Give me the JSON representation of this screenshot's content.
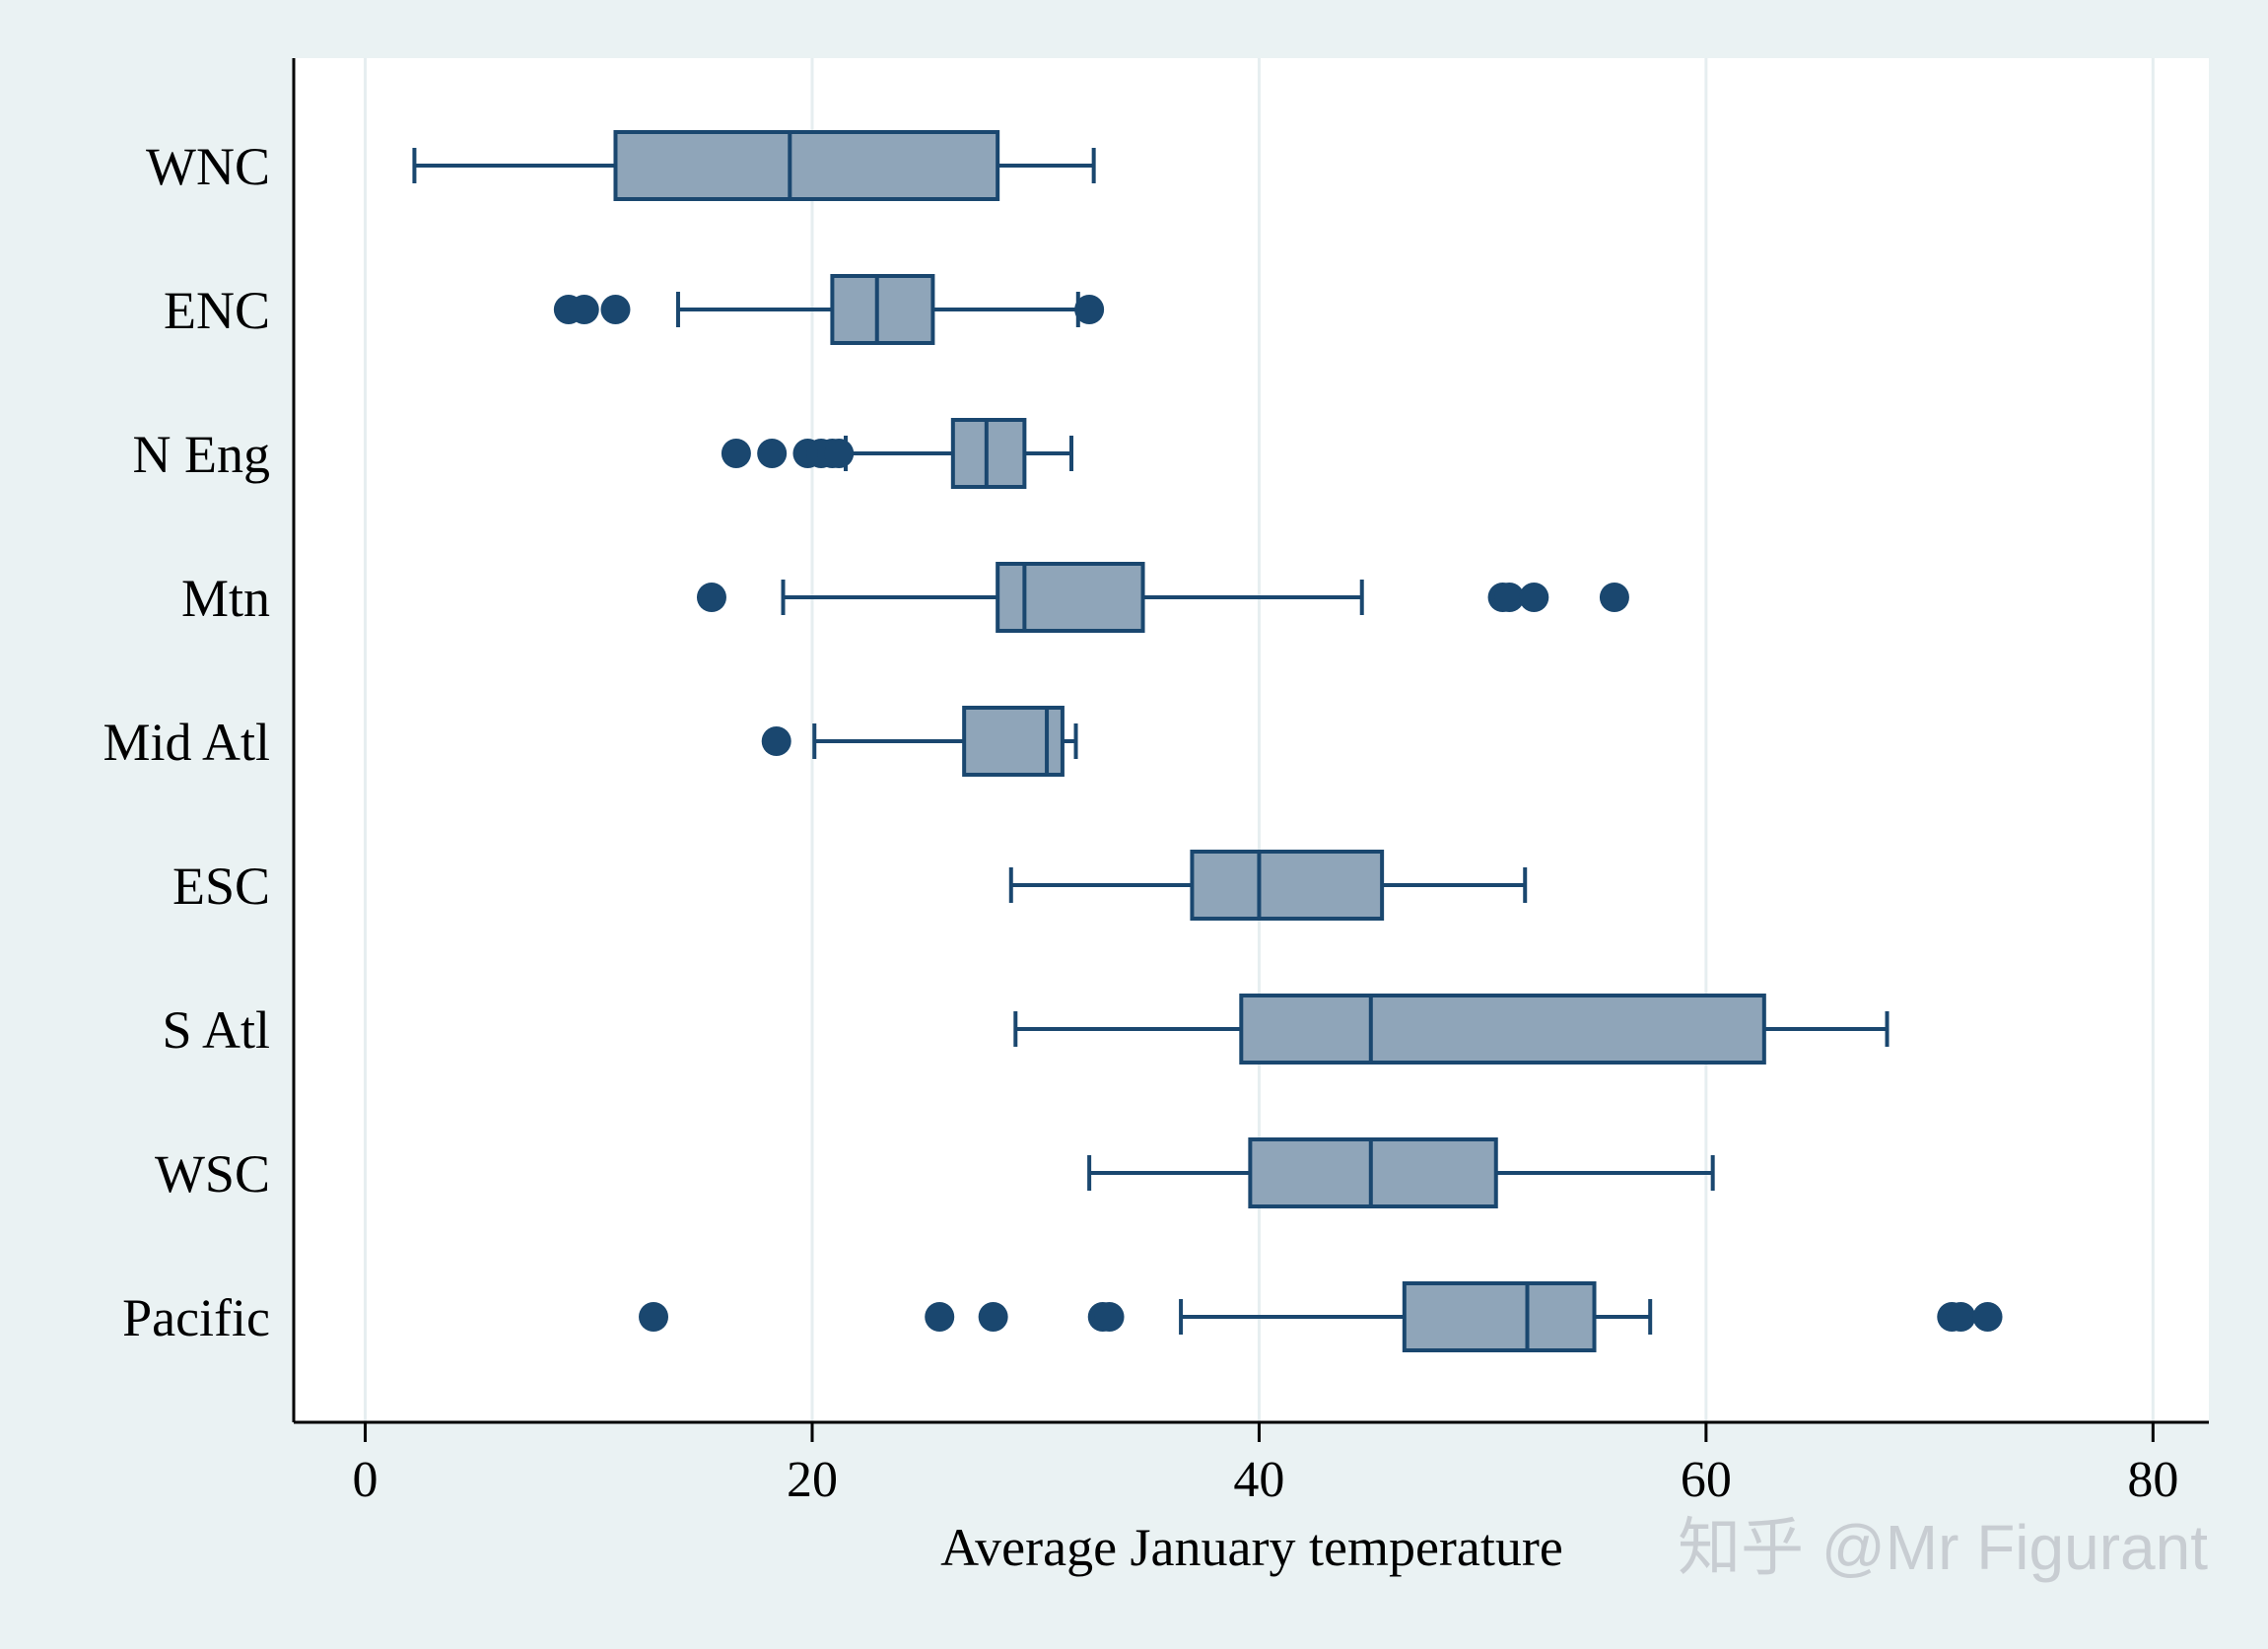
{
  "chart_data": {
    "type": "boxplot",
    "orientation": "horizontal",
    "title": "",
    "xlabel": "Average January temperature",
    "ylabel": "",
    "xlim": [
      -3.2,
      82.5
    ],
    "xticks": [
      0,
      20,
      40,
      60,
      80
    ],
    "xtick_labels": [
      "0",
      "20",
      "40",
      "60",
      "80"
    ],
    "grid": true,
    "colors": {
      "box_fill": "#8fa5b9",
      "box_stroke": "#1a476f",
      "outlier": "#1a476f",
      "grid": "#ffffff",
      "plot_bg": "#ffffff",
      "page_bg": "#eaf2f3"
    },
    "categories": [
      "WNC",
      "ENC",
      "N Eng",
      "Mtn",
      "Mid Atl",
      "ESC",
      "S Atl",
      "WSC",
      "Pacific"
    ],
    "series": [
      {
        "name": "WNC",
        "whisker_low": 2.2,
        "q1": 11.2,
        "median": 19.0,
        "q3": 28.3,
        "whisker_high": 32.6,
        "outliers": []
      },
      {
        "name": "ENC",
        "whisker_low": 14.0,
        "q1": 20.9,
        "median": 22.9,
        "q3": 25.4,
        "whisker_high": 31.9,
        "outliers": [
          9.1,
          9.8,
          11.2,
          32.4
        ]
      },
      {
        "name": "N Eng",
        "whisker_low": 21.5,
        "q1": 26.3,
        "median": 27.8,
        "q3": 29.5,
        "whisker_high": 31.6,
        "outliers": [
          16.6,
          18.2,
          19.8,
          20.4,
          20.9,
          21.2
        ]
      },
      {
        "name": "Mtn",
        "whisker_low": 18.7,
        "q1": 28.3,
        "median": 29.5,
        "q3": 34.8,
        "whisker_high": 44.6,
        "outliers": [
          15.5,
          50.9,
          51.2,
          52.3,
          55.9
        ]
      },
      {
        "name": "Mid Atl",
        "whisker_low": 20.1,
        "q1": 26.8,
        "median": 30.5,
        "q3": 31.2,
        "whisker_high": 31.8,
        "outliers": [
          18.4
        ]
      },
      {
        "name": "ESC",
        "whisker_low": 28.9,
        "q1": 37.0,
        "median": 40.0,
        "q3": 45.5,
        "whisker_high": 51.9,
        "outliers": []
      },
      {
        "name": "S Atl",
        "whisker_low": 29.1,
        "q1": 39.2,
        "median": 45.0,
        "q3": 62.6,
        "whisker_high": 68.1,
        "outliers": []
      },
      {
        "name": "WSC",
        "whisker_low": 32.4,
        "q1": 39.6,
        "median": 45.0,
        "q3": 50.6,
        "whisker_high": 60.3,
        "outliers": []
      },
      {
        "name": "Pacific",
        "whisker_low": 36.5,
        "q1": 46.5,
        "median": 52.0,
        "q3": 55.0,
        "whisker_high": 57.5,
        "outliers": [
          12.9,
          25.7,
          28.1,
          33.0,
          33.3,
          71.0,
          71.4,
          72.6
        ]
      }
    ]
  },
  "watermark": {
    "text": "知乎 @Mr Figurant",
    "color": "#c8cdd2"
  }
}
